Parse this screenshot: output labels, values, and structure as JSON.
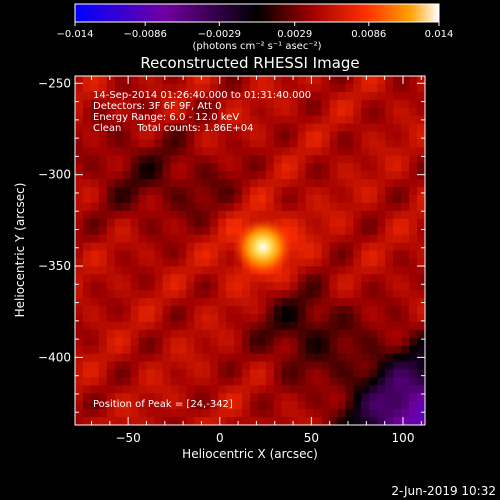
{
  "chart_data": {
    "type": "heatmap",
    "title": "Reconstructed RHESSI Image",
    "xlabel": "Heliocentric X (arcsec)",
    "ylabel": "Heliocentric Y (arcsec)",
    "xlim": [
      -79,
      112
    ],
    "ylim": [
      -437,
      -246
    ],
    "xticks": [
      -50,
      0,
      50,
      100
    ],
    "xtick_labels": [
      "−50",
      "0",
      "50",
      "100"
    ],
    "yticks": [
      -250,
      -300,
      -350,
      -400
    ],
    "ytick_labels": [
      "−250",
      "−300",
      "−350",
      "−400"
    ],
    "colorbar": {
      "min": -0.014,
      "max": 0.014,
      "ticks": [
        -0.014,
        -0.0086,
        -0.0029,
        0.0029,
        0.0086,
        0.014
      ],
      "tick_labels": [
        "−0.014",
        "−0.0086",
        "−0.0029",
        "0.0029",
        "0.0086",
        "0.014"
      ],
      "units_label": "(photons cm⁻² s⁻¹ asec⁻²)",
      "colors": [
        "#0000ff",
        "#7a00a0",
        "#000000",
        "#8a0000",
        "#ff2000",
        "#ff9000",
        "#ffffff"
      ]
    },
    "annotations": [
      "14-Sep-2014 01:26:40.000 to 01:31:40.000",
      "Detectors: 3F 6F 9F, Att 0",
      "Energy Range: 6.0 - 12.0 keV",
      "Clean     Total counts: 1.86E+04",
      "Position of Peak = [24,-342]"
    ],
    "peak": {
      "x": 24,
      "y": -342
    },
    "grid": false
  },
  "footer": {
    "timestamp": "2-Jun-2019 10:32"
  }
}
